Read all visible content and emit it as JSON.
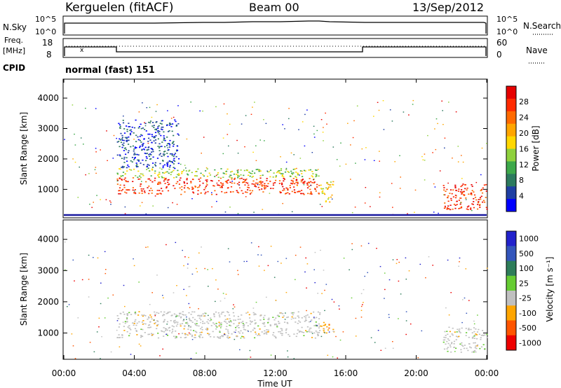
{
  "header": {
    "station": "Kerguelen (fitACF)",
    "beam": "Beam 00",
    "date": "13/Sep/2012"
  },
  "nsky_panel": {
    "left_label": "N.Sky",
    "left_ticks": [
      "10^5",
      "10^0"
    ],
    "right_ticks": [
      "10^5",
      "10^0"
    ],
    "right_label": "N.Search",
    "legend_marker": "dotted"
  },
  "freq_panel": {
    "left_label_line1": "Freq.",
    "left_label_line2": "[MHz]",
    "left_ticks": [
      "18",
      "8"
    ],
    "right_ticks": [
      "60",
      "0"
    ],
    "right_label": "Nave",
    "legend_marker": "dotted"
  },
  "cpid": {
    "label": "CPID",
    "value": "normal (fast) 151"
  },
  "colors": {
    "power_scale": [
      "#0000ff",
      "#1f3fa3",
      "#2c7a5e",
      "#3da84a",
      "#8fd13d",
      "#ffd700",
      "#ffa500",
      "#ff6a00",
      "#ff2a00",
      "#e60000"
    ],
    "velocity_scale": [
      "#2222cc",
      "#3355bb",
      "#2e7d5a",
      "#66cc33",
      "#c0c0c0",
      "#ffa500",
      "#ff5500",
      "#ee0000"
    ]
  },
  "chart_data": [
    {
      "type": "heatmap",
      "name": "power",
      "ylabel": "Slant Range [km]",
      "yticks": [
        "1000",
        "2000",
        "3000",
        "4000"
      ],
      "ylim": [
        180,
        4600
      ],
      "xlim": [
        0,
        24
      ],
      "colorbar_label": "Power [dB]",
      "colorbar_ticks": [
        "4",
        "8",
        "12",
        "16",
        "20",
        "24",
        "28"
      ],
      "regions": [
        {
          "t0": 3.0,
          "t1": 14.5,
          "r0": 850,
          "r1": 1400,
          "level": 8
        },
        {
          "t0": 3.0,
          "t1": 14.5,
          "r0": 1400,
          "r1": 1700,
          "level": 4
        },
        {
          "t0": 3.0,
          "t1": 6.5,
          "r0": 1700,
          "r1": 3300,
          "level": 1
        },
        {
          "t0": 14.5,
          "t1": 15.3,
          "r0": 600,
          "r1": 1300,
          "level": 5
        },
        {
          "t0": 21.5,
          "t1": 24.0,
          "r0": 350,
          "r1": 1200,
          "level": 8
        }
      ]
    },
    {
      "type": "heatmap",
      "name": "velocity",
      "ylabel": "Slant Range [km]",
      "yticks": [
        "1000",
        "2000",
        "3000",
        "4000"
      ],
      "xticks": [
        "00:00",
        "04:00",
        "08:00",
        "12:00",
        "16:00",
        "20:00",
        "00:00"
      ],
      "xlabel": "Time UT",
      "ylim": [
        180,
        4600
      ],
      "xlim": [
        0,
        24
      ],
      "colorbar_label": "Velocity [m s⁻¹]",
      "colorbar_ticks": [
        "1000",
        "500",
        "100",
        "25",
        "-25",
        "-100",
        "-500",
        "-1000"
      ],
      "regions": [
        {
          "t0": 3.0,
          "t1": 14.5,
          "r0": 850,
          "r1": 1700,
          "level": 4
        },
        {
          "t0": 14.5,
          "t1": 15.3,
          "r0": 1000,
          "r1": 1400,
          "level": 5
        },
        {
          "t0": 21.5,
          "t1": 24.0,
          "r0": 400,
          "r1": 1200,
          "level": 4
        }
      ]
    }
  ]
}
